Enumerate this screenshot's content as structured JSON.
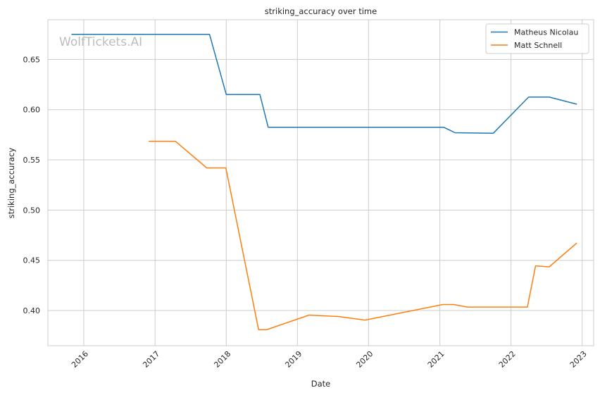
{
  "watermark": "WolfTickets.AI",
  "chart_data": {
    "type": "line",
    "title": "striking_accuracy over time",
    "xlabel": "Date",
    "ylabel": "striking_accuracy",
    "x_range": [
      "2015-07-01",
      "2023-03-01"
    ],
    "ylim": [
      0.365,
      0.6895
    ],
    "x_ticks": [
      "2016-01-01",
      "2017-01-01",
      "2018-01-01",
      "2019-01-01",
      "2020-01-01",
      "2021-01-01",
      "2022-01-01",
      "2023-01-01"
    ],
    "x_tick_labels": [
      "2016",
      "2017",
      "2018",
      "2019",
      "2020",
      "2021",
      "2022",
      "2023"
    ],
    "y_ticks": [
      0.4,
      0.45,
      0.5,
      0.55,
      0.6,
      0.65
    ],
    "y_tick_labels": [
      "0.40",
      "0.45",
      "0.50",
      "0.55",
      "0.60",
      "0.65"
    ],
    "grid": true,
    "legend_position": "top-right",
    "series": [
      {
        "name": "Matheus Nicolau",
        "color": "#1f77b4",
        "points": [
          [
            "2015-11-01",
            0.675
          ],
          [
            "2017-10-07",
            0.675
          ],
          [
            "2018-01-01",
            0.615
          ],
          [
            "2018-06-23",
            0.615
          ],
          [
            "2018-08-04",
            0.5825
          ],
          [
            "2021-01-20",
            0.5825
          ],
          [
            "2021-03-20",
            0.577
          ],
          [
            "2021-10-02",
            0.5765
          ],
          [
            "2022-04-01",
            0.6125
          ],
          [
            "2022-07-16",
            0.6125
          ],
          [
            "2022-12-03",
            0.6055
          ]
        ]
      },
      {
        "name": "Matt Schnell",
        "color": "#ff7f0e",
        "points": [
          [
            "2016-12-01",
            0.5685
          ],
          [
            "2017-04-15",
            0.5685
          ],
          [
            "2017-09-23",
            0.542
          ],
          [
            "2017-12-30",
            0.542
          ],
          [
            "2018-06-16",
            0.381
          ],
          [
            "2018-07-28",
            0.381
          ],
          [
            "2019-03-02",
            0.3955
          ],
          [
            "2019-08-03",
            0.394
          ],
          [
            "2019-12-14",
            0.3905
          ],
          [
            "2021-01-16",
            0.406
          ],
          [
            "2021-03-13",
            0.406
          ],
          [
            "2021-05-22",
            0.4035
          ],
          [
            "2022-03-26",
            0.4035
          ],
          [
            "2022-05-07",
            0.4445
          ],
          [
            "2022-07-16",
            0.4435
          ],
          [
            "2022-12-03",
            0.467
          ]
        ]
      }
    ]
  }
}
